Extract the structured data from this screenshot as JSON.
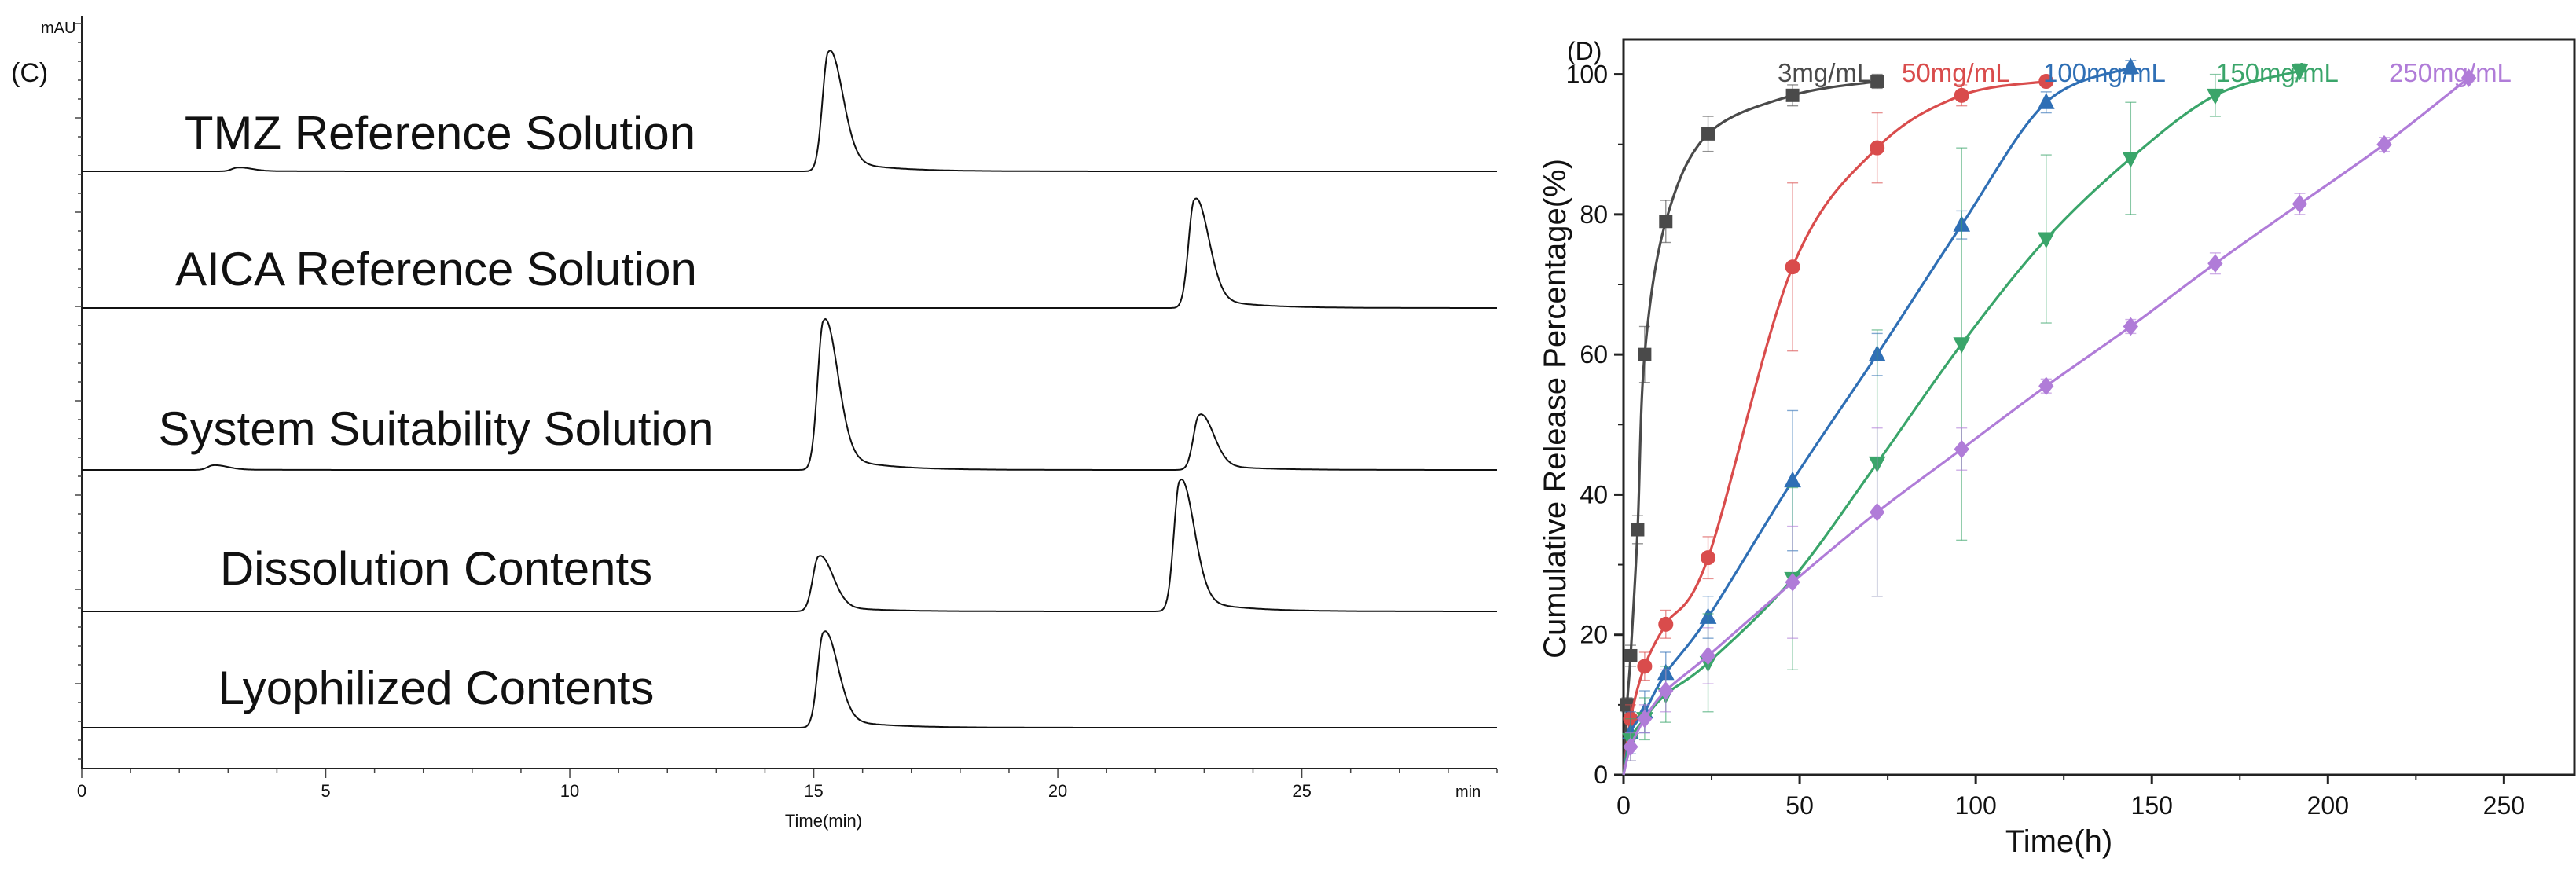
{
  "panel_c": {
    "label": "(C)",
    "y_unit": "mAU",
    "x_unit": "min"
  },
  "panel_d": {
    "label": "(D)"
  },
  "colors": {
    "3mg": "#4a4a4a",
    "50mg": "#d94c4c",
    "100mg": "#2f6fb5",
    "150mg": "#3aa56a",
    "250mg": "#b07cd8",
    "axis": "#222222"
  },
  "chart_data": [
    {
      "type": "line",
      "title": "",
      "xlabel": "Time(min)",
      "ylabel": "mAU",
      "xlim": [
        0,
        29
      ],
      "xticks": [
        0,
        5,
        10,
        15,
        20,
        25
      ],
      "traces": [
        {
          "name": "TMZ Reference Solution",
          "peaks": [
            {
              "rt": 15.3,
              "height": 0.95
            },
            {
              "rt": 3.2,
              "height": 0.03
            }
          ]
        },
        {
          "name": "AICA Reference Solution",
          "peaks": [
            {
              "rt": 22.8,
              "height": 0.92
            }
          ]
        },
        {
          "name": "System Suitability Solution",
          "peaks": [
            {
              "rt": 15.2,
              "height": 0.95
            },
            {
              "rt": 22.9,
              "height": 0.35
            },
            {
              "rt": 2.7,
              "height": 0.03
            }
          ]
        },
        {
          "name": "Dissolution Contents",
          "peaks": [
            {
              "rt": 15.1,
              "height": 0.4
            },
            {
              "rt": 22.5,
              "height": 0.95
            }
          ]
        },
        {
          "name": "Lyophilized Contents",
          "peaks": [
            {
              "rt": 15.2,
              "height": 0.9
            }
          ]
        }
      ]
    },
    {
      "type": "line",
      "title": "",
      "xlabel": "Time(h)",
      "ylabel": "Cumulative Release Percentage(%)",
      "xlim": [
        0,
        270
      ],
      "ylim": [
        0,
        105
      ],
      "xticks": [
        0,
        50,
        100,
        150,
        200,
        250
      ],
      "yticks": [
        0,
        20,
        40,
        60,
        80,
        100
      ],
      "series": [
        {
          "name": "3mg/mL",
          "color_key": "3mg",
          "marker": "square",
          "x": [
            0,
            1,
            2,
            4,
            6,
            12,
            24,
            48,
            72
          ],
          "y": [
            0,
            10,
            17,
            35,
            60,
            79,
            91.5,
            97,
            99
          ],
          "err": [
            0,
            1,
            1.5,
            2,
            4,
            3,
            2.5,
            1.5,
            1
          ]
        },
        {
          "name": "50mg/mL",
          "color_key": "50mg",
          "marker": "circle",
          "x": [
            0,
            2,
            6,
            12,
            24,
            48,
            72,
            96,
            120
          ],
          "y": [
            0,
            8,
            15.5,
            21.5,
            31,
            72.5,
            89.5,
            97,
            99
          ],
          "err": [
            0,
            2,
            2,
            2,
            3,
            12,
            5,
            1.5,
            0.5
          ]
        },
        {
          "name": "100mg/mL",
          "color_key": "100mg",
          "marker": "triangle-up",
          "x": [
            0,
            2,
            6,
            12,
            24,
            48,
            72,
            96,
            120,
            144
          ],
          "y": [
            0,
            6,
            9,
            14.5,
            22.5,
            42,
            60,
            78.5,
            96,
            101
          ],
          "err": [
            0,
            3,
            3,
            3,
            3,
            10,
            3,
            2,
            1.5,
            1
          ]
        },
        {
          "name": "150mg/mL",
          "color_key": "150mg",
          "marker": "triangle-down",
          "x": [
            0,
            2,
            6,
            12,
            24,
            48,
            72,
            96,
            120,
            144,
            168,
            192
          ],
          "y": [
            0,
            5,
            8,
            11.5,
            16,
            28,
            44.5,
            61.5,
            76.5,
            88,
            97,
            100.5
          ],
          "err": [
            0,
            3,
            3,
            4,
            7,
            13,
            19,
            28,
            12,
            8,
            3,
            1
          ]
        },
        {
          "name": "250mg/mL",
          "color_key": "250mg",
          "marker": "diamond",
          "x": [
            0,
            2,
            6,
            12,
            24,
            48,
            72,
            96,
            120,
            144,
            168,
            192,
            216,
            240
          ],
          "y": [
            0,
            4,
            8,
            12,
            17,
            27.5,
            37.5,
            46.5,
            55.5,
            64,
            73,
            81.5,
            90,
            99.5
          ],
          "err": [
            0,
            2,
            2,
            3,
            4,
            8,
            12,
            3,
            1,
            1,
            1.5,
            1.5,
            1,
            0.5
          ]
        }
      ]
    }
  ]
}
